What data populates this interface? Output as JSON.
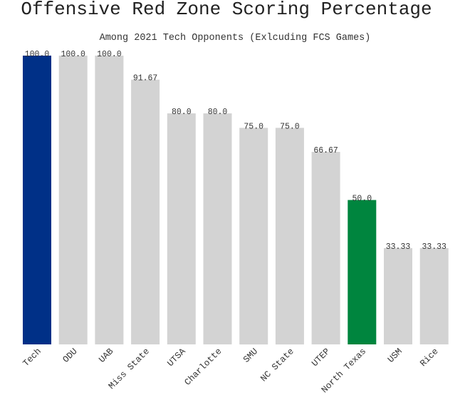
{
  "chart_data": {
    "type": "bar",
    "title": "Offensive Red Zone Scoring Percentage",
    "subtitle": "Among 2021 Tech Opponents (Exlcuding FCS Games)",
    "xlabel": "",
    "ylabel": "",
    "ylim": [
      0,
      100
    ],
    "grid": false,
    "categories": [
      "Tech",
      "ODU",
      "UAB",
      "Miss State",
      "UTSA",
      "Charlotte",
      "SMU",
      "NC State",
      "UTEP",
      "North Texas",
      "USM",
      "Rice"
    ],
    "values": [
      100.0,
      100.0,
      100.0,
      91.67,
      80.0,
      80.0,
      75.0,
      75.0,
      66.67,
      50.0,
      33.33,
      33.33
    ],
    "value_labels": [
      "100.0",
      "100.0",
      "100.0",
      "91.67",
      "80.0",
      "80.0",
      "75.0",
      "75.0",
      "66.67",
      "50.0",
      "33.33",
      "33.33"
    ],
    "colors": [
      "#003087",
      "#d3d3d3",
      "#d3d3d3",
      "#d3d3d3",
      "#d3d3d3",
      "#d3d3d3",
      "#d3d3d3",
      "#d3d3d3",
      "#d3d3d3",
      "#00853e",
      "#d3d3d3",
      "#d3d3d3"
    ]
  }
}
